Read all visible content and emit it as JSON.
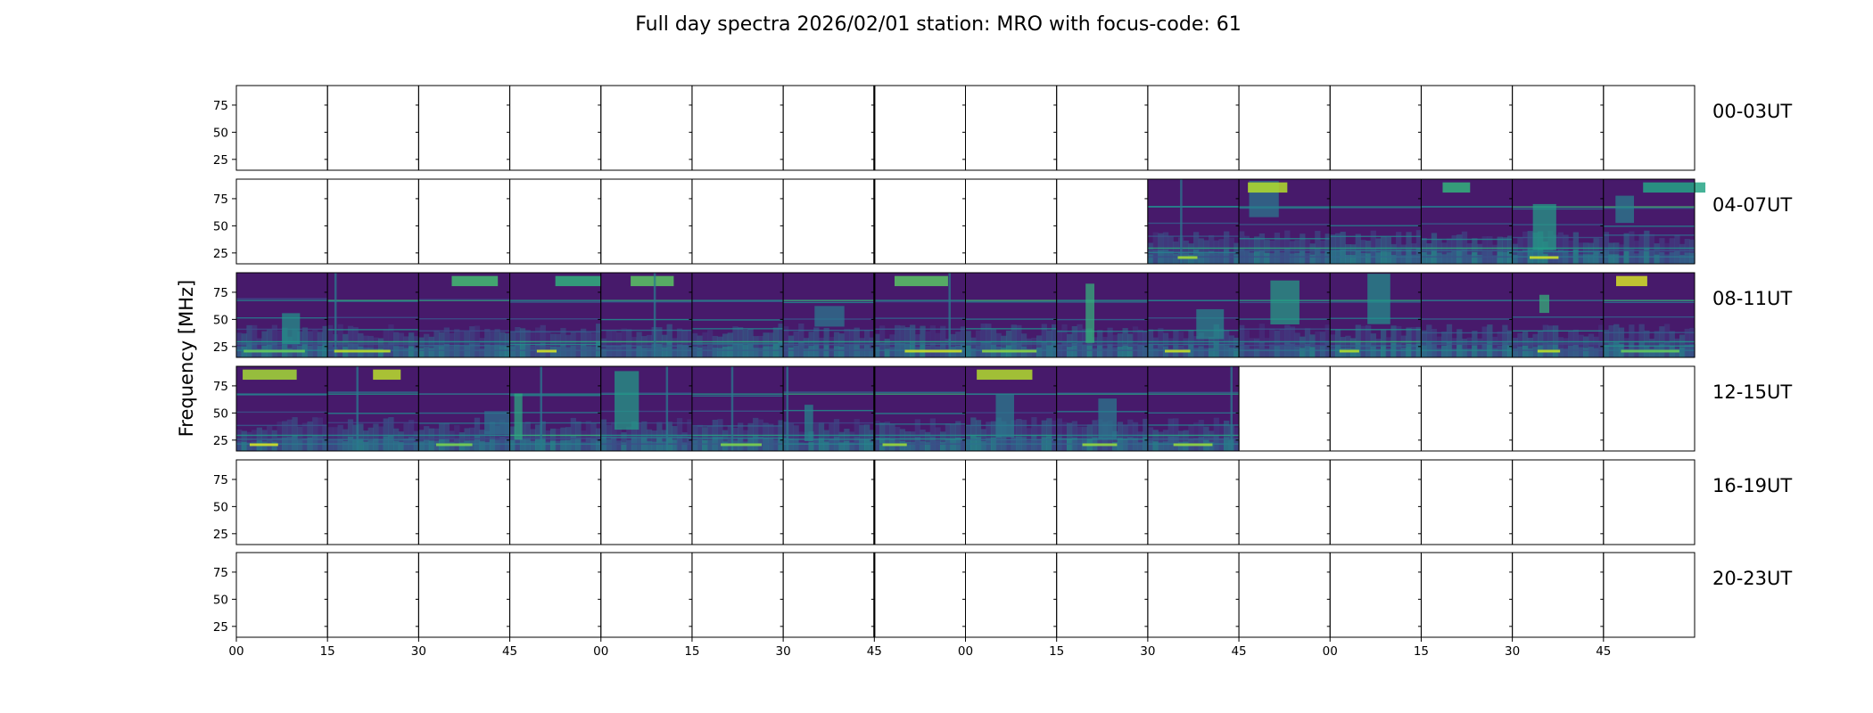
{
  "chart_data": {
    "type": "heatmap",
    "title": "Full day spectra 2026/02/01 station: MRO with focus-code: 61",
    "ylabel": "Frequency [MHz]",
    "xlabel": "",
    "ylim": [
      15,
      93
    ],
    "y_ticks": [
      25,
      50,
      75
    ],
    "x_tick_labels": [
      "00",
      "15",
      "30",
      "45",
      "00",
      "15",
      "30",
      "45",
      "00",
      "15",
      "30",
      "45",
      "00",
      "15",
      "30",
      "45"
    ],
    "rows": [
      {
        "label": "00-03UT",
        "first_filled": 0,
        "last_filled": -1
      },
      {
        "label": "04-07UT",
        "first_filled": 10,
        "last_filled": 15
      },
      {
        "label": "08-11UT",
        "first_filled": 0,
        "last_filled": 15
      },
      {
        "label": "12-15UT",
        "first_filled": 0,
        "last_filled": 10
      },
      {
        "label": "16-19UT",
        "first_filled": 0,
        "last_filled": -1
      },
      {
        "label": "20-23UT",
        "first_filled": 0,
        "last_filled": -1
      }
    ],
    "panels_per_row": 16,
    "colormap": "viridis",
    "colors": {
      "background": "#440154",
      "mid": "#21918c",
      "high": "#fde725"
    }
  }
}
